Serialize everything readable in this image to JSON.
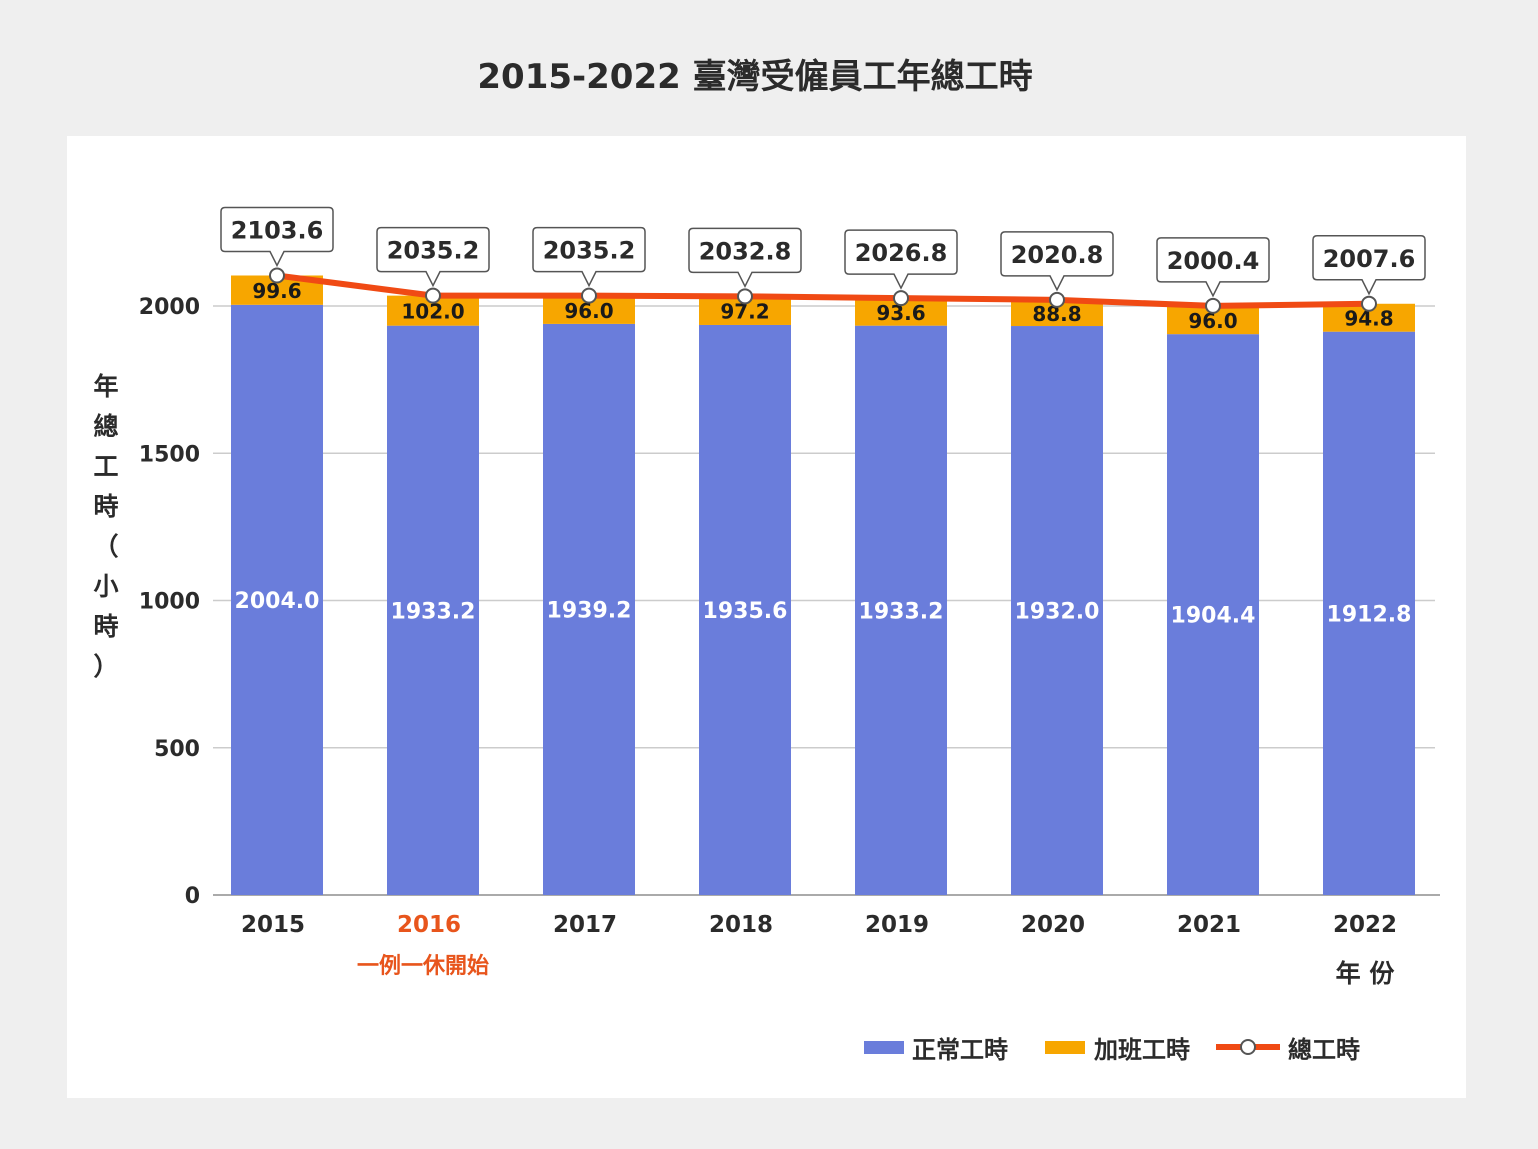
{
  "chart_data": {
    "type": "bar",
    "stacked": true,
    "title": "2015-2022 臺灣受僱員工年總工時",
    "xlabel": "年 份",
    "ylabel": "年總工時（小時）",
    "ylim": [
      0,
      2300
    ],
    "yticks": [
      0,
      500,
      1000,
      1500,
      2000
    ],
    "grid": true,
    "legend_position": "bottom-right",
    "categories": [
      "2015",
      "2016",
      "2017",
      "2018",
      "2019",
      "2020",
      "2021",
      "2022"
    ],
    "highlight_category": "2016",
    "annotation": {
      "category": "2016",
      "text": "一例一休開始"
    },
    "series": [
      {
        "name": "正常工時",
        "kind": "bar",
        "color": "#6a7ddb",
        "values": [
          2004.0,
          1933.2,
          1939.2,
          1935.6,
          1933.2,
          1932.0,
          1904.4,
          1912.8
        ]
      },
      {
        "name": "加班工時",
        "kind": "bar",
        "color": "#f7a600",
        "values": [
          99.6,
          102.0,
          96.0,
          97.2,
          93.6,
          88.8,
          96.0,
          94.8
        ]
      },
      {
        "name": "總工時",
        "kind": "line",
        "color": "#f04a14",
        "values": [
          2103.6,
          2035.2,
          2035.2,
          2032.8,
          2026.8,
          2020.8,
          2000.4,
          2007.6
        ]
      }
    ],
    "colors": {
      "highlight": "#e8551c",
      "text": "#2b2b2b",
      "grid": "#cccccc"
    }
  }
}
